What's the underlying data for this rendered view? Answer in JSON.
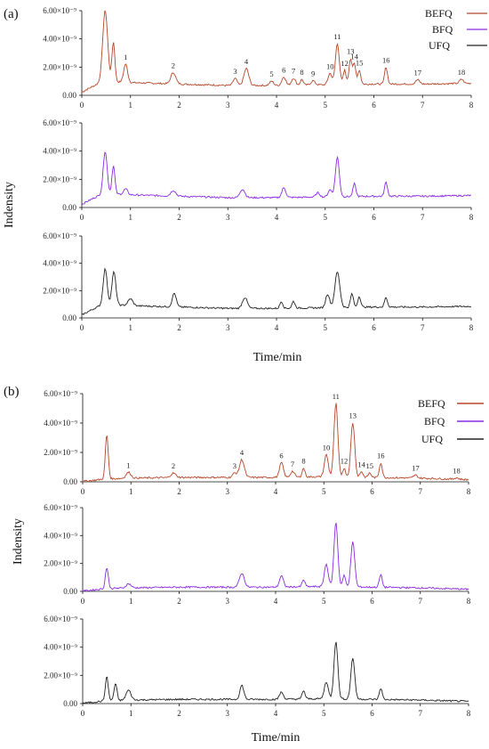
{
  "figure": {
    "panel_labels": [
      "(a)",
      "(b)"
    ],
    "xlabel": "Time/min",
    "ylabel": "Indensity"
  },
  "legend": [
    {
      "name": "BEFQ",
      "color": "#b5472a"
    },
    {
      "name": "BFQ",
      "color": "#8a2be2"
    },
    {
      "name": "UFQ",
      "color": "#222222"
    }
  ],
  "chart_data": [
    {
      "type": "line",
      "panel": "(a)",
      "xlabel": "Time/min",
      "ylabel": "Indensity",
      "xlim": [
        0,
        8
      ],
      "ylim": [
        0,
        6e-09
      ],
      "x_ticks": [
        "0",
        "1",
        "2",
        "3",
        "4",
        "5",
        "6",
        "7",
        "8"
      ],
      "y_ticks": [
        "0.00",
        "2.00×10⁻⁹",
        "4.00×10⁻⁹",
        "6.00×10⁻⁹"
      ],
      "baseline": [
        1.1e-09,
        9e-10,
        8e-10,
        7e-10,
        7e-10,
        7.5e-10,
        8e-10,
        8e-10,
        8.5e-10
      ],
      "series": [
        {
          "name": "BEFQ",
          "color": "#b5472a",
          "peaks": [
            {
              "x": 0.48,
              "y": 5e-09,
              "w": 0.05
            },
            {
              "x": 0.65,
              "y": 2.8e-09,
              "w": 0.03
            },
            {
              "x": 0.9,
              "y": 1.3e-09,
              "w": 0.04
            },
            {
              "x": 1.88,
              "y": 8e-10,
              "w": 0.05
            },
            {
              "x": 3.15,
              "y": 5e-10,
              "w": 0.04
            },
            {
              "x": 3.38,
              "y": 1.2e-09,
              "w": 0.05
            },
            {
              "x": 3.9,
              "y": 3e-10,
              "w": 0.04
            },
            {
              "x": 4.15,
              "y": 6e-10,
              "w": 0.04
            },
            {
              "x": 4.35,
              "y": 5e-10,
              "w": 0.04
            },
            {
              "x": 4.52,
              "y": 4e-10,
              "w": 0.03
            },
            {
              "x": 4.75,
              "y": 3e-10,
              "w": 0.04
            },
            {
              "x": 5.1,
              "y": 8e-10,
              "w": 0.04
            },
            {
              "x": 5.25,
              "y": 2.9e-09,
              "w": 0.04
            },
            {
              "x": 5.4,
              "y": 1e-09,
              "w": 0.03
            },
            {
              "x": 5.52,
              "y": 1.8e-09,
              "w": 0.03
            },
            {
              "x": 5.6,
              "y": 1.4e-09,
              "w": 0.03
            },
            {
              "x": 5.7,
              "y": 1e-09,
              "w": 0.03
            },
            {
              "x": 6.25,
              "y": 1.2e-09,
              "w": 0.03
            },
            {
              "x": 6.9,
              "y": 3e-10,
              "w": 0.04
            },
            {
              "x": 7.8,
              "y": 3e-10,
              "w": 0.04
            }
          ]
        },
        {
          "name": "BFQ",
          "color": "#8a2be2",
          "peaks": [
            {
              "x": 0.48,
              "y": 3e-09,
              "w": 0.04
            },
            {
              "x": 0.65,
              "y": 2e-09,
              "w": 0.03
            },
            {
              "x": 0.9,
              "y": 4e-10,
              "w": 0.04
            },
            {
              "x": 1.88,
              "y": 4e-10,
              "w": 0.05
            },
            {
              "x": 3.3,
              "y": 6e-10,
              "w": 0.05
            },
            {
              "x": 4.15,
              "y": 7e-10,
              "w": 0.04
            },
            {
              "x": 4.85,
              "y": 3e-10,
              "w": 0.04
            },
            {
              "x": 5.1,
              "y": 5e-10,
              "w": 0.04
            },
            {
              "x": 5.25,
              "y": 2.8e-09,
              "w": 0.04
            },
            {
              "x": 5.6,
              "y": 9e-10,
              "w": 0.03
            },
            {
              "x": 6.25,
              "y": 1e-09,
              "w": 0.03
            }
          ]
        },
        {
          "name": "UFQ",
          "color": "#222222",
          "peaks": [
            {
              "x": 0.48,
              "y": 2.6e-09,
              "w": 0.04
            },
            {
              "x": 0.66,
              "y": 2.4e-09,
              "w": 0.04
            },
            {
              "x": 1.0,
              "y": 5e-10,
              "w": 0.05
            },
            {
              "x": 1.9,
              "y": 1e-09,
              "w": 0.04
            },
            {
              "x": 3.35,
              "y": 8e-10,
              "w": 0.05
            },
            {
              "x": 4.1,
              "y": 5e-10,
              "w": 0.03
            },
            {
              "x": 4.35,
              "y": 5e-10,
              "w": 0.03
            },
            {
              "x": 5.05,
              "y": 1e-09,
              "w": 0.04
            },
            {
              "x": 5.25,
              "y": 2.6e-09,
              "w": 0.05
            },
            {
              "x": 5.55,
              "y": 1e-09,
              "w": 0.03
            },
            {
              "x": 5.7,
              "y": 8e-10,
              "w": 0.03
            },
            {
              "x": 6.25,
              "y": 7e-10,
              "w": 0.03
            }
          ]
        }
      ],
      "peak_labels": [
        {
          "text": "1",
          "x": 0.9
        },
        {
          "text": "2",
          "x": 1.88
        },
        {
          "text": "3",
          "x": 3.15
        },
        {
          "text": "4",
          "x": 3.38
        },
        {
          "text": "5",
          "x": 3.9
        },
        {
          "text": "6",
          "x": 4.15
        },
        {
          "text": "7",
          "x": 4.35
        },
        {
          "text": "8",
          "x": 4.52
        },
        {
          "text": "9",
          "x": 4.75
        },
        {
          "text": "10",
          "x": 5.1
        },
        {
          "text": "11",
          "x": 5.25
        },
        {
          "text": "12",
          "x": 5.4
        },
        {
          "text": "13",
          "x": 5.52
        },
        {
          "text": "14",
          "x": 5.6
        },
        {
          "text": "15",
          "x": 5.7
        },
        {
          "text": "16",
          "x": 6.25
        },
        {
          "text": "17",
          "x": 6.9
        },
        {
          "text": "18",
          "x": 7.8
        }
      ]
    },
    {
      "type": "line",
      "panel": "(b)",
      "xlabel": "Time/min",
      "ylabel": "Indensity",
      "xlim": [
        0,
        8
      ],
      "ylim": [
        0,
        6e-09
      ],
      "x_ticks": [
        "0",
        "1",
        "2",
        "3",
        "4",
        "5",
        "6",
        "7",
        "8"
      ],
      "y_ticks": [
        "0.00",
        "2.00×10⁻⁹",
        "4.00×10⁻⁹",
        "6.00×10⁻⁹"
      ],
      "baseline": [
        1.5e-10,
        2.5e-10,
        3e-10,
        3e-10,
        3e-10,
        3.5e-10,
        3e-10,
        2.5e-10,
        1.5e-10
      ],
      "series": [
        {
          "name": "BEFQ",
          "color": "#b5472a",
          "peaks": [
            {
              "x": 0.5,
              "y": 3e-09,
              "w": 0.03
            },
            {
              "x": 0.95,
              "y": 4e-10,
              "w": 0.05
            },
            {
              "x": 1.88,
              "y": 3e-10,
              "w": 0.05
            },
            {
              "x": 3.15,
              "y": 3e-10,
              "w": 0.04
            },
            {
              "x": 3.3,
              "y": 1.2e-09,
              "w": 0.05
            },
            {
              "x": 4.12,
              "y": 1e-09,
              "w": 0.04
            },
            {
              "x": 4.35,
              "y": 4e-10,
              "w": 0.04
            },
            {
              "x": 4.58,
              "y": 6e-10,
              "w": 0.03
            },
            {
              "x": 5.05,
              "y": 1.5e-09,
              "w": 0.04
            },
            {
              "x": 5.25,
              "y": 5e-09,
              "w": 0.04
            },
            {
              "x": 5.42,
              "y": 6e-10,
              "w": 0.03
            },
            {
              "x": 5.6,
              "y": 3.7e-09,
              "w": 0.04
            },
            {
              "x": 5.78,
              "y": 4e-10,
              "w": 0.03
            },
            {
              "x": 5.95,
              "y": 3e-10,
              "w": 0.03
            },
            {
              "x": 6.18,
              "y": 1e-09,
              "w": 0.03
            },
            {
              "x": 6.9,
              "y": 2e-10,
              "w": 0.04
            },
            {
              "x": 7.75,
              "y": 1e-10,
              "w": 0.04
            }
          ]
        },
        {
          "name": "BFQ",
          "color": "#8a2be2",
          "peaks": [
            {
              "x": 0.5,
              "y": 1.5e-09,
              "w": 0.03
            },
            {
              "x": 0.95,
              "y": 3e-10,
              "w": 0.05
            },
            {
              "x": 3.3,
              "y": 1e-09,
              "w": 0.05
            },
            {
              "x": 4.12,
              "y": 8e-10,
              "w": 0.04
            },
            {
              "x": 4.58,
              "y": 5e-10,
              "w": 0.03
            },
            {
              "x": 5.05,
              "y": 1.6e-09,
              "w": 0.04
            },
            {
              "x": 5.25,
              "y": 4.6e-09,
              "w": 0.04
            },
            {
              "x": 5.42,
              "y": 8e-10,
              "w": 0.03
            },
            {
              "x": 5.6,
              "y": 3.2e-09,
              "w": 0.04
            },
            {
              "x": 6.18,
              "y": 9e-10,
              "w": 0.03
            }
          ]
        },
        {
          "name": "UFQ",
          "color": "#222222",
          "peaks": [
            {
              "x": 0.5,
              "y": 1.7e-09,
              "w": 0.03
            },
            {
              "x": 0.68,
              "y": 1.2e-09,
              "w": 0.03
            },
            {
              "x": 0.95,
              "y": 7e-10,
              "w": 0.05
            },
            {
              "x": 3.3,
              "y": 1e-09,
              "w": 0.04
            },
            {
              "x": 4.12,
              "y": 5e-10,
              "w": 0.04
            },
            {
              "x": 4.58,
              "y": 6e-10,
              "w": 0.03
            },
            {
              "x": 5.05,
              "y": 1.2e-09,
              "w": 0.04
            },
            {
              "x": 5.25,
              "y": 4.1e-09,
              "w": 0.04
            },
            {
              "x": 5.6,
              "y": 2.9e-09,
              "w": 0.04
            },
            {
              "x": 6.18,
              "y": 8e-10,
              "w": 0.03
            }
          ]
        }
      ],
      "peak_labels": [
        {
          "text": "1",
          "x": 0.95
        },
        {
          "text": "2",
          "x": 1.88
        },
        {
          "text": "3",
          "x": 3.15
        },
        {
          "text": "4",
          "x": 3.3
        },
        {
          "text": "6",
          "x": 4.12
        },
        {
          "text": "7",
          "x": 4.35
        },
        {
          "text": "8",
          "x": 4.58
        },
        {
          "text": "10",
          "x": 5.05
        },
        {
          "text": "11",
          "x": 5.25
        },
        {
          "text": "12",
          "x": 5.42
        },
        {
          "text": "13",
          "x": 5.6
        },
        {
          "text": "14",
          "x": 5.78
        },
        {
          "text": "15",
          "x": 5.95
        },
        {
          "text": "16",
          "x": 6.18
        },
        {
          "text": "17",
          "x": 6.9
        },
        {
          "text": "18",
          "x": 7.75
        }
      ]
    }
  ]
}
